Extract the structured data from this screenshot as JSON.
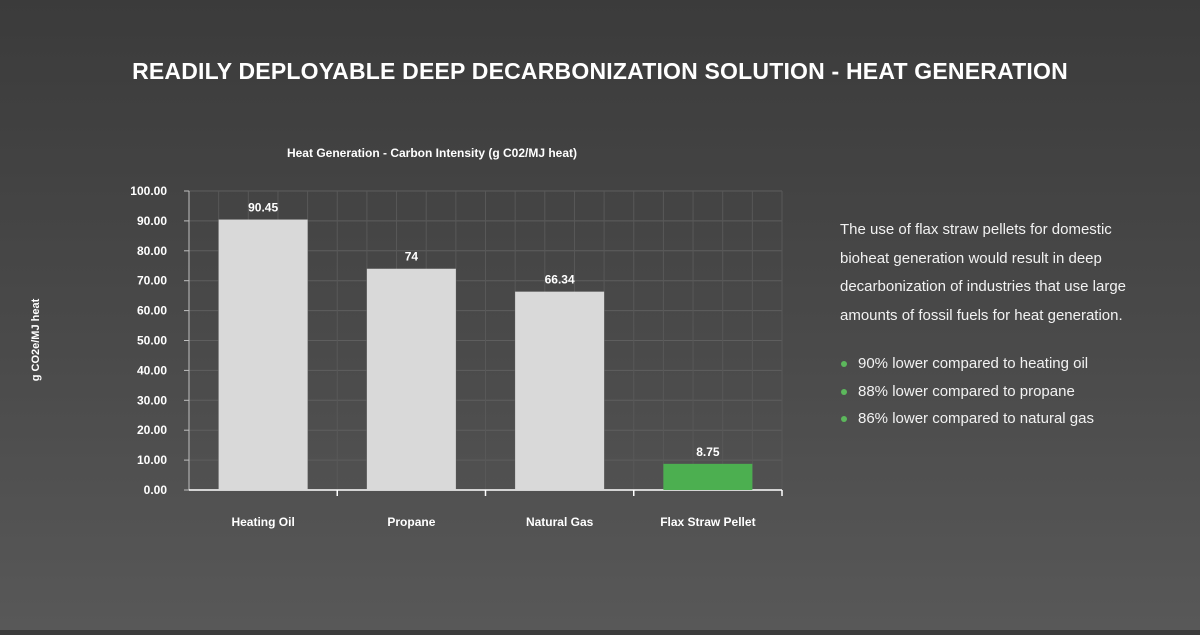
{
  "page": {
    "title": "READILY DEPLOYABLE DEEP DECARBONIZATION SOLUTION - HEAT GENERATION"
  },
  "chart_data": {
    "type": "bar",
    "title": "Heat Generation - Carbon Intensity (g C02/MJ heat)",
    "xlabel": "",
    "ylabel": "g CO2e/MJ heat",
    "ylim": [
      0,
      100
    ],
    "y_ticks": [
      "0.00",
      "10.00",
      "20.00",
      "30.00",
      "40.00",
      "50.00",
      "60.00",
      "70.00",
      "80.00",
      "90.00",
      "100.00"
    ],
    "categories": [
      "Heating Oil",
      "Propane",
      "Natural Gas",
      "Flax Straw Pellet"
    ],
    "values": [
      90.45,
      74,
      66.34,
      8.75
    ],
    "value_labels": [
      "90.45",
      "74",
      "66.34",
      "8.75"
    ],
    "bar_colors": [
      "#d9d9d9",
      "#d9d9d9",
      "#d9d9d9",
      "#4caf50"
    ],
    "grid": true,
    "legend": "none"
  },
  "side_panel": {
    "paragraph": "The use of flax straw pellets for domestic bioheat generation would result in deep decarbonization of industries that use large amounts of fossil fuels for heat generation.",
    "bullets": [
      "90% lower compared to heating oil",
      "88% lower compared to propane",
      "86% lower compared to natural gas"
    ],
    "bullet_color": "#5cb85c"
  }
}
